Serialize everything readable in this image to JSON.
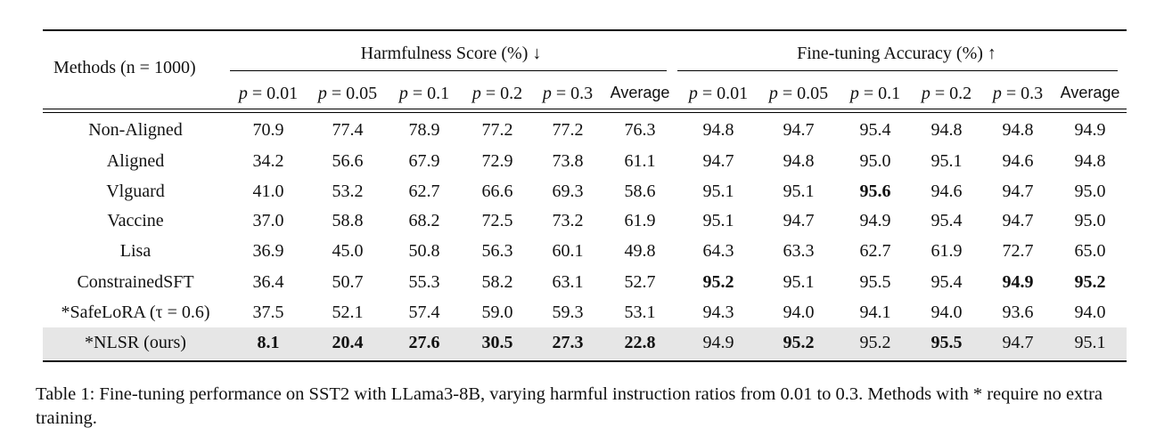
{
  "table": {
    "methods_header": "Methods",
    "methods_header_math": "(n = 1000)",
    "group_harm": "Harmfulness Score (%)",
    "group_harm_arrow": "↓",
    "group_acc": "Fine-tuning Accuracy (%)",
    "group_acc_arrow": "↑",
    "columns": [
      "p = 0.01",
      "p = 0.05",
      "p = 0.1",
      "p = 0.2",
      "p = 0.3",
      "Average",
      "p = 0.01",
      "p = 0.05",
      "p = 0.1",
      "p = 0.2",
      "p = 0.3",
      "Average"
    ],
    "rows": [
      {
        "method": "Non-Aligned",
        "values": [
          "70.9",
          "77.4",
          "78.9",
          "77.2",
          "77.2",
          "76.3",
          "94.8",
          "94.7",
          "95.4",
          "94.8",
          "94.8",
          "94.9"
        ],
        "bold": [
          false,
          false,
          false,
          false,
          false,
          false,
          false,
          false,
          false,
          false,
          false,
          false
        ],
        "highlight": false
      },
      {
        "method": "Aligned",
        "values": [
          "34.2",
          "56.6",
          "67.9",
          "72.9",
          "73.8",
          "61.1",
          "94.7",
          "94.8",
          "95.0",
          "95.1",
          "94.6",
          "94.8"
        ],
        "bold": [
          false,
          false,
          false,
          false,
          false,
          false,
          false,
          false,
          false,
          false,
          false,
          false
        ],
        "highlight": false
      },
      {
        "method": "Vlguard",
        "values": [
          "41.0",
          "53.2",
          "62.7",
          "66.6",
          "69.3",
          "58.6",
          "95.1",
          "95.1",
          "95.6",
          "94.6",
          "94.7",
          "95.0"
        ],
        "bold": [
          false,
          false,
          false,
          false,
          false,
          false,
          false,
          false,
          true,
          false,
          false,
          false
        ],
        "highlight": false
      },
      {
        "method": "Vaccine",
        "values": [
          "37.0",
          "58.8",
          "68.2",
          "72.5",
          "73.2",
          "61.9",
          "95.1",
          "94.7",
          "94.9",
          "95.4",
          "94.7",
          "95.0"
        ],
        "bold": [
          false,
          false,
          false,
          false,
          false,
          false,
          false,
          false,
          false,
          false,
          false,
          false
        ],
        "highlight": false
      },
      {
        "method": "Lisa",
        "values": [
          "36.9",
          "45.0",
          "50.8",
          "56.3",
          "60.1",
          "49.8",
          "64.3",
          "63.3",
          "62.7",
          "61.9",
          "72.7",
          "65.0"
        ],
        "bold": [
          false,
          false,
          false,
          false,
          false,
          false,
          false,
          false,
          false,
          false,
          false,
          false
        ],
        "highlight": false
      },
      {
        "method": "ConstrainedSFT",
        "values": [
          "36.4",
          "50.7",
          "55.3",
          "58.2",
          "63.1",
          "52.7",
          "95.2",
          "95.1",
          "95.5",
          "95.4",
          "94.9",
          "95.2"
        ],
        "bold": [
          false,
          false,
          false,
          false,
          false,
          false,
          true,
          false,
          false,
          false,
          true,
          true
        ],
        "highlight": false
      },
      {
        "method": "*SafeLoRA (τ = 0.6)",
        "values": [
          "37.5",
          "52.1",
          "57.4",
          "59.0",
          "59.3",
          "53.1",
          "94.3",
          "94.0",
          "94.1",
          "94.0",
          "93.6",
          "94.0"
        ],
        "bold": [
          false,
          false,
          false,
          false,
          false,
          false,
          false,
          false,
          false,
          false,
          false,
          false
        ],
        "highlight": false
      },
      {
        "method": "*NLSR (ours)",
        "values": [
          "8.1",
          "20.4",
          "27.6",
          "30.5",
          "27.3",
          "22.8",
          "94.9",
          "95.2",
          "95.2",
          "95.5",
          "94.7",
          "95.1"
        ],
        "bold": [
          true,
          true,
          true,
          true,
          true,
          true,
          false,
          true,
          false,
          true,
          false,
          false
        ],
        "highlight": true
      }
    ]
  },
  "caption": "Table 1: Fine-tuning performance on SST2 with LLama3-8B, varying harmful instruction ratios from 0.01 to 0.3. Methods with * require no extra training."
}
